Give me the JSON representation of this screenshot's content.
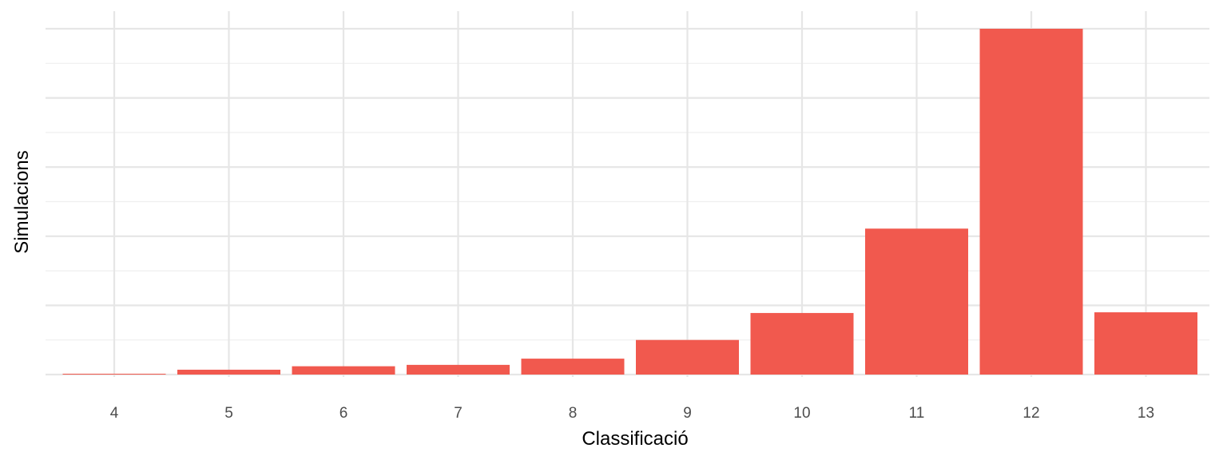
{
  "chart_data": {
    "type": "bar",
    "categories": [
      "4",
      "5",
      "6",
      "7",
      "8",
      "9",
      "10",
      "11",
      "12",
      "13"
    ],
    "values": [
      1,
      7,
      12,
      14,
      23,
      50,
      89,
      211,
      500,
      90
    ],
    "xlabel": "Classificació",
    "ylabel": "Simulacions",
    "ylim": [
      0,
      500
    ],
    "y_major_step": 100,
    "y_minor_step": 50,
    "y_tick_labels_shown": false,
    "grid": true,
    "bar_color": "#f1594e",
    "background": "#ffffff"
  }
}
